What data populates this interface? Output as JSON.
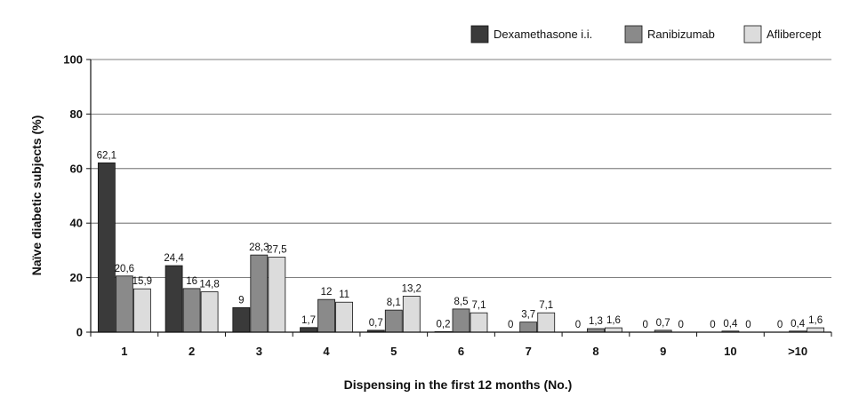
{
  "chart_data": {
    "type": "bar",
    "xlabel": "Dispensing in the first 12 months (No.)",
    "ylabel": "Naïve diabetic subjects (%)",
    "ylim": [
      0,
      100
    ],
    "yticks": [
      0,
      20,
      40,
      60,
      80,
      100
    ],
    "grid": true,
    "legend_position": "top-right",
    "categories": [
      "1",
      "2",
      "3",
      "4",
      "5",
      "6",
      "7",
      "8",
      "9",
      "10",
      ">10"
    ],
    "series": [
      {
        "name": "Dexamethasone i.i.",
        "color": "#3a3a3a",
        "values": [
          62.1,
          24.4,
          9,
          1.7,
          0.7,
          0.2,
          0,
          0,
          0,
          0,
          0
        ],
        "labels": [
          "62,1",
          "24,4",
          "9",
          "1,7",
          "0,7",
          "0,2",
          "0",
          "0",
          "0",
          "0",
          "0"
        ]
      },
      {
        "name": "Ranibizumab",
        "color": "#8a8a8a",
        "values": [
          20.6,
          16,
          28.3,
          12,
          8.1,
          8.5,
          3.7,
          1.3,
          0.7,
          0.4,
          0.4
        ],
        "labels": [
          "20,6",
          "16",
          "28,3",
          "12",
          "8,1",
          "8,5",
          "3,7",
          "1,3",
          "0,7",
          "0,4",
          "0,4"
        ]
      },
      {
        "name": "Aflibercept",
        "color": "#dcdcdc",
        "values": [
          15.9,
          14.8,
          27.5,
          11,
          13.2,
          7.1,
          7.1,
          1.6,
          0,
          0,
          1.6
        ],
        "labels": [
          "15,9",
          "14,8",
          "27,5",
          "11",
          "13,2",
          "7,1",
          "7,1",
          "1,6",
          "0",
          "0",
          "1,6"
        ]
      }
    ]
  }
}
